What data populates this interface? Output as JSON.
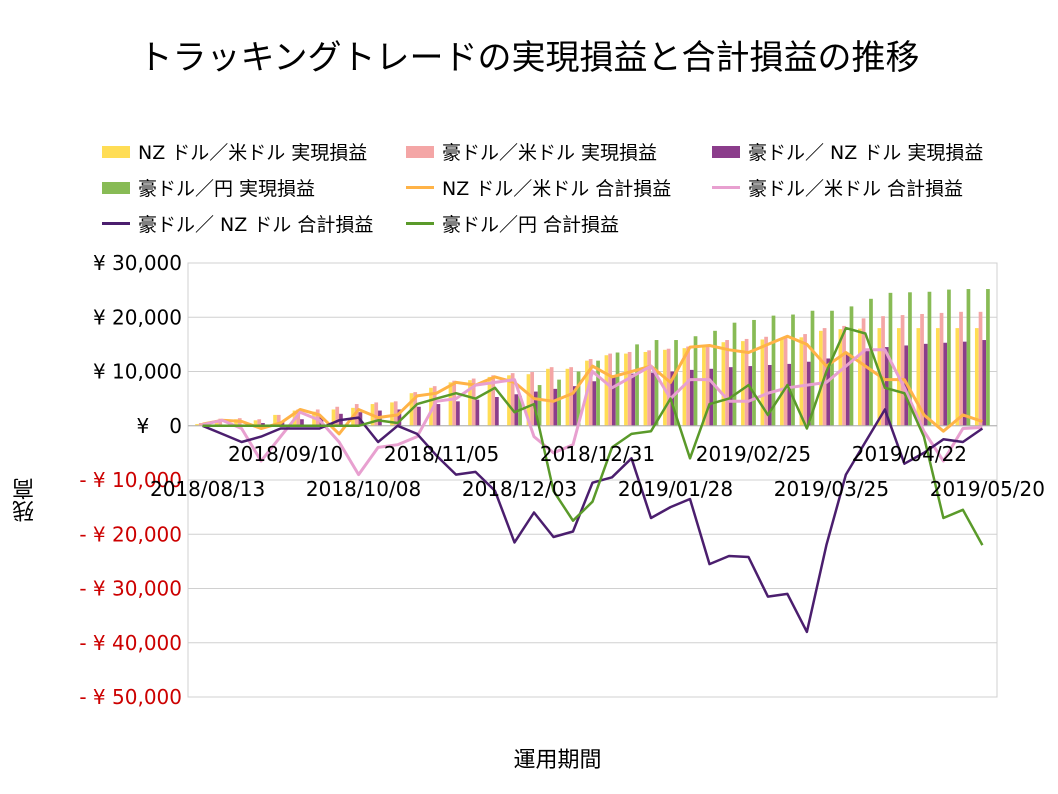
{
  "chart_data": {
    "type": "bar",
    "title": "トラッキングトレードの実現損益と合計損益の推移",
    "xlabel": "運用期間",
    "ylabel": "残高",
    "ylim": [
      -50000,
      30000
    ],
    "yticks": [
      30000,
      20000,
      10000,
      0,
      -10000,
      -20000,
      -30000,
      -40000,
      -50000
    ],
    "ytick_labels": [
      "¥ 30,000",
      "¥ 20,000",
      "¥ 10,000",
      "¥　0",
      "- ¥ 10,000",
      "- ¥ 20,000",
      "- ¥ 30,000",
      "- ¥ 40,000",
      "- ¥ 50,000"
    ],
    "xtick_labels": [
      {
        "label": "2018/08/13",
        "index": 0,
        "row": 2
      },
      {
        "label": "2018/09/10",
        "index": 4,
        "row": 1
      },
      {
        "label": "2018/10/08",
        "index": 8,
        "row": 2
      },
      {
        "label": "2018/11/05",
        "index": 12,
        "row": 1
      },
      {
        "label": "2018/12/03",
        "index": 16,
        "row": 2
      },
      {
        "label": "2018/12/31",
        "index": 20,
        "row": 1
      },
      {
        "label": "2019/01/28",
        "index": 24,
        "row": 2
      },
      {
        "label": "2019/02/25",
        "index": 28,
        "row": 1
      },
      {
        "label": "2019/03/25",
        "index": 32,
        "row": 2
      },
      {
        "label": "2019/04/22",
        "index": 36,
        "row": 1
      },
      {
        "label": "2019/05/20",
        "index": 40,
        "row": 2
      }
    ],
    "legend_position": "top",
    "grid": true,
    "bar_series": [
      {
        "name": "NZ ドル／米ドル 実現損益",
        "color": "#ffdd55",
        "values": [
          300,
          1000,
          1200,
          1000,
          2000,
          2800,
          2600,
          3000,
          3300,
          4000,
          4300,
          6000,
          7000,
          8000,
          8400,
          9000,
          9300,
          9500,
          10500,
          10500,
          12000,
          13000,
          13300,
          13600,
          14000,
          14300,
          14500,
          15400,
          15600,
          15900,
          16000,
          16300,
          17500,
          17800,
          17900,
          18000,
          18000,
          18000,
          18000,
          18000,
          18000
        ]
      },
      {
        "name": "豪ドル／米ドル 実現損益",
        "color": "#f4a6a6",
        "values": [
          500,
          1300,
          1400,
          1200,
          2000,
          3000,
          3000,
          3500,
          4000,
          4300,
          4500,
          6200,
          7300,
          8300,
          8700,
          9300,
          9700,
          9900,
          10800,
          10800,
          12300,
          13300,
          13600,
          13900,
          14200,
          14600,
          14800,
          15800,
          16000,
          16400,
          16500,
          16900,
          18000,
          18400,
          19800,
          20200,
          20400,
          20600,
          20800,
          21000,
          21000
        ]
      },
      {
        "name": "豪ドル／ NZ ドル 実現損益",
        "color": "#8b3d8b",
        "values": [
          200,
          200,
          200,
          500,
          800,
          1200,
          1700,
          2200,
          2500,
          2800,
          3000,
          3500,
          4000,
          4500,
          4800,
          5300,
          5800,
          6300,
          6800,
          7300,
          8200,
          9300,
          9600,
          9800,
          10000,
          10300,
          10500,
          10800,
          11000,
          11200,
          11400,
          11800,
          12400,
          13400,
          14200,
          14500,
          14800,
          15100,
          15300,
          15500,
          15800
        ]
      },
      {
        "name": "豪ドル／円 実現損益",
        "color": "#88bb55",
        "values": [
          0,
          0,
          0,
          0,
          0,
          0,
          0,
          0,
          0,
          0,
          0,
          0,
          0,
          0,
          0,
          0,
          5500,
          7500,
          8500,
          10000,
          12000,
          13500,
          15000,
          15800,
          15800,
          16500,
          17500,
          19000,
          19500,
          20300,
          20500,
          21200,
          21200,
          22000,
          23400,
          24500,
          24600,
          24700,
          25100,
          25200,
          25200
        ]
      }
    ],
    "line_series": [
      {
        "name": "NZ ドル／米ドル 合計損益",
        "color": "#ffb347",
        "values": [
          300,
          1000,
          800,
          -500,
          500,
          3000,
          2000,
          -1500,
          3000,
          1500,
          2000,
          5500,
          6000,
          8000,
          7500,
          9000,
          8000,
          5000,
          4500,
          6000,
          11000,
          9000,
          10000,
          11000,
          8000,
          14500,
          14800,
          14000,
          13500,
          15000,
          16500,
          15000,
          11000,
          13500,
          11000,
          8500,
          8500,
          2000,
          -1000,
          2000,
          800
        ]
      },
      {
        "name": "豪ドル／米ドル 合計損益",
        "color": "#e8a0d0",
        "values": [
          200,
          1000,
          -500,
          -6500,
          -2000,
          2500,
          1000,
          -3000,
          -9000,
          -4000,
          -3500,
          -2000,
          4500,
          5000,
          7500,
          8000,
          8500,
          -2000,
          -5000,
          -3500,
          10000,
          7000,
          9000,
          11000,
          5000,
          8500,
          8500,
          4500,
          4500,
          6000,
          7000,
          7500,
          8000,
          11000,
          14000,
          14000,
          7000,
          -1000,
          -6500,
          -500,
          -300
        ]
      },
      {
        "name": "豪ドル／ NZ ドル 合計損益",
        "color": "#4b1e6e",
        "values": [
          0,
          -1500,
          -3000,
          -2000,
          -500,
          -500,
          -500,
          1000,
          1500,
          -3000,
          0,
          -1500,
          -5500,
          -9000,
          -8500,
          -12000,
          -21500,
          -16000,
          -20500,
          -19500,
          -10500,
          -9500,
          -6000,
          -17000,
          -15000,
          -13500,
          -25500,
          -24000,
          -24200,
          -31500,
          -31000,
          -38000,
          -22000,
          -9000,
          -3000,
          3000,
          -7000,
          -5000,
          -2500,
          -3000,
          -500
        ]
      },
      {
        "name": "豪ドル／円 合計損益",
        "color": "#5a9a2a",
        "values": [
          0,
          0,
          0,
          0,
          0,
          0,
          0,
          0,
          0,
          1000,
          500,
          4000,
          5000,
          6000,
          5000,
          7000,
          2500,
          4000,
          -12000,
          -17500,
          -14000,
          -4000,
          -1500,
          -1000,
          5000,
          -6000,
          4000,
          5000,
          7500,
          2000,
          7500,
          -500,
          10000,
          18000,
          17000,
          7000,
          6000,
          -2000,
          -17000,
          -15500,
          -22000
        ]
      }
    ]
  }
}
